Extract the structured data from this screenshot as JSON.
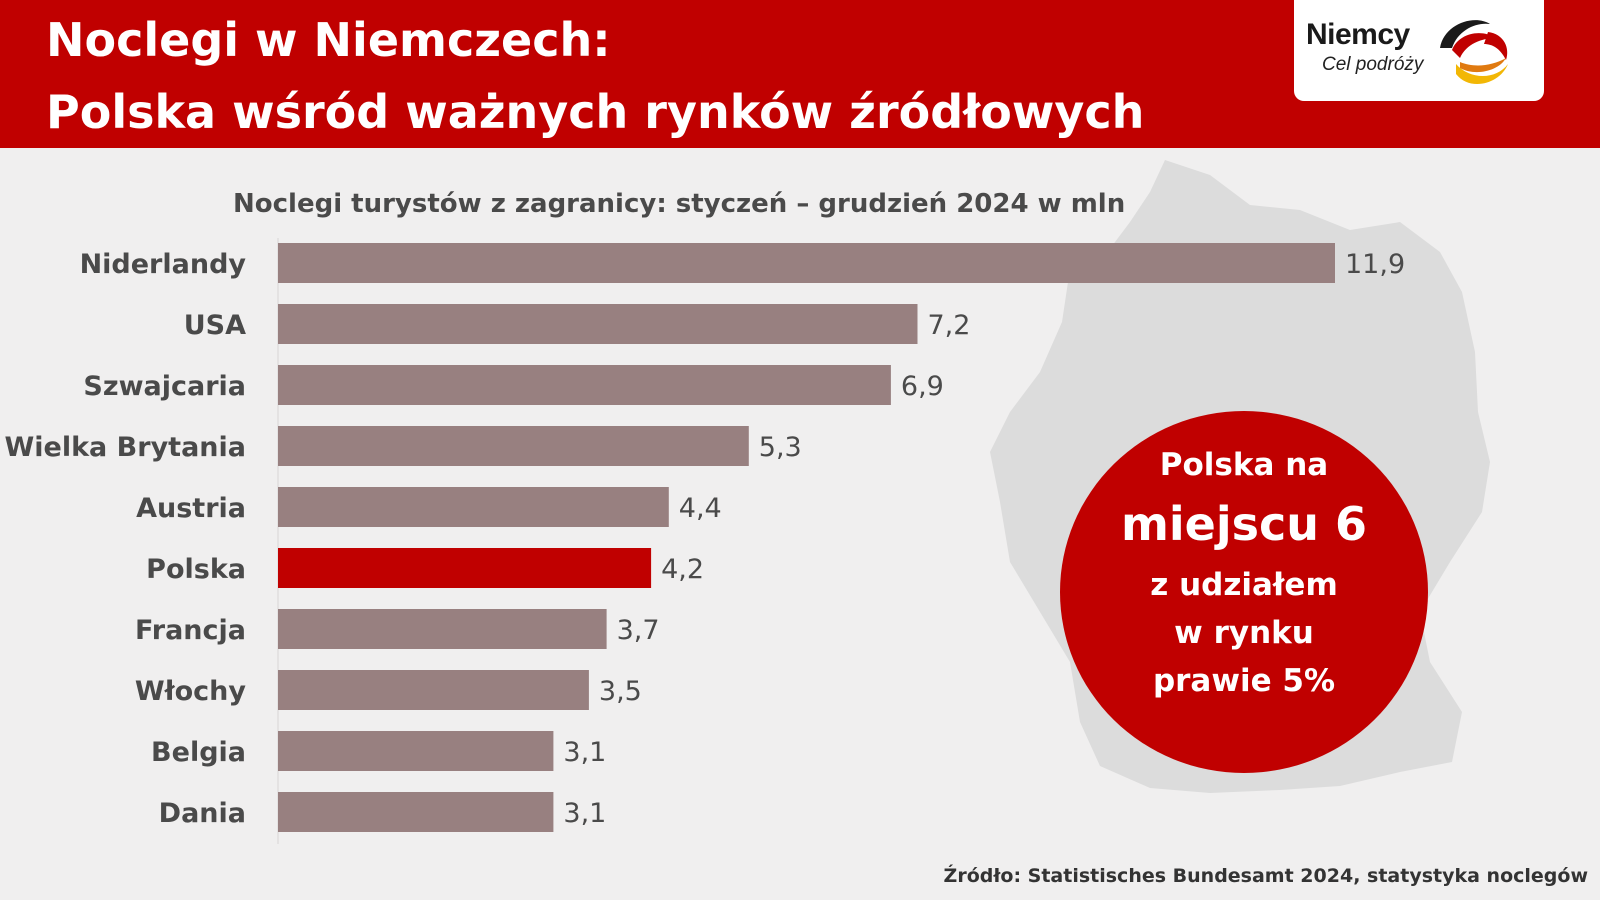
{
  "header": {
    "title_line1": "Noclegi w Niemczech:",
    "title_line2": "Polska wśród ważnych rynków źródłowych"
  },
  "logo": {
    "word": "Niemcy",
    "subtitle": "Cel podróży"
  },
  "chart_data": {
    "type": "bar",
    "orientation": "horizontal",
    "title": "Noclegi turystów z zagranicy: styczeń – grudzień 2024 w mln",
    "categories": [
      "Niderlandy",
      "USA",
      "Szwajcaria",
      "Wielka Brytania",
      "Austria",
      "Polska",
      "Francja",
      "Włochy",
      "Belgia",
      "Dania"
    ],
    "values": [
      11.9,
      7.2,
      6.9,
      5.3,
      4.4,
      4.2,
      3.7,
      3.5,
      3.1,
      3.1
    ],
    "value_labels": [
      "11,9",
      "7,2",
      "6,9",
      "5,3",
      "4,4",
      "4,2",
      "3,7",
      "3,5",
      "3,1",
      "3,1"
    ],
    "highlight": "Polska",
    "xlim": [
      0,
      11.9
    ],
    "colors": {
      "default": "#988080",
      "highlight": "#c00000"
    },
    "xlabel": "",
    "ylabel": ""
  },
  "callout": {
    "line1": "Polska na",
    "line2": "miejscu 6",
    "line3": "z udziałem",
    "line4": "w rynku",
    "line5": "prawie 5%"
  },
  "source": "Źródło: Statistisches Bundesamt 2024, statystyka noclegów",
  "colors": {
    "brand_red": "#c00000",
    "background": "#f0efef",
    "map_gray": "#dcdcdc"
  }
}
